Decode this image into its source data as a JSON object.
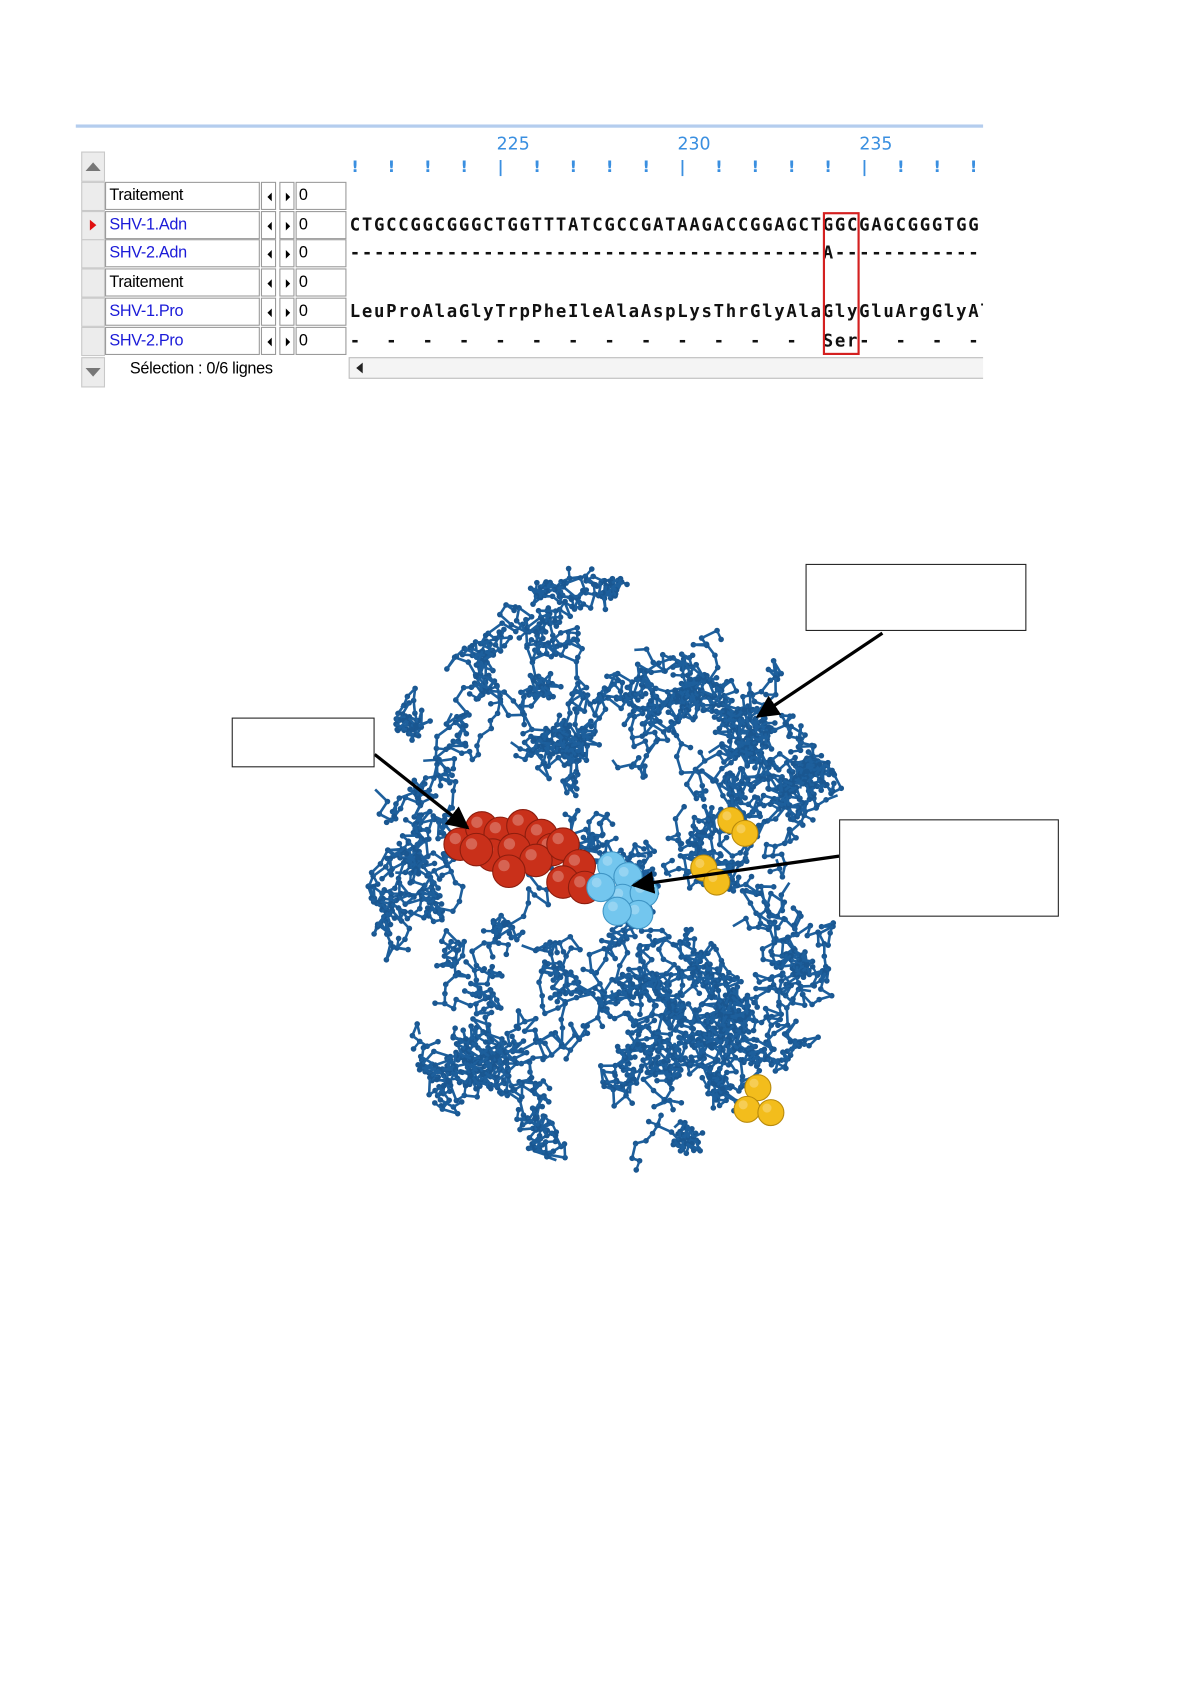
{
  "alignment": {
    "ruler": [
      225,
      230,
      235
    ],
    "rows": [
      {
        "label": "Traitement",
        "value": 0
      },
      {
        "label": "SHV-1.Adn",
        "value": 0,
        "sequence": "CTGCCGGCGGGCTGGTTTATCGCCGATAAGACCGGAGCTGGCGAGCGGGTGG"
      },
      {
        "label": "SHV-2.Adn",
        "value": 0,
        "sequence": "---------------------------------------A------------"
      },
      {
        "label": "Traitement",
        "value": 0
      },
      {
        "label": "SHV-1.Pro",
        "value": 0,
        "sequence": "LeuProAlaGlyTrpPheIleAlaAspLysThrGlyAlaGlyGluArgGlyAla"
      },
      {
        "label": "SHV-2.Pro",
        "value": 0,
        "sequence": "-  -  -  -  -  -  -  -  -  -  -  -  -  Ser-  -  -  -  "
      }
    ],
    "status": "Sélection : 0/6 lignes"
  }
}
